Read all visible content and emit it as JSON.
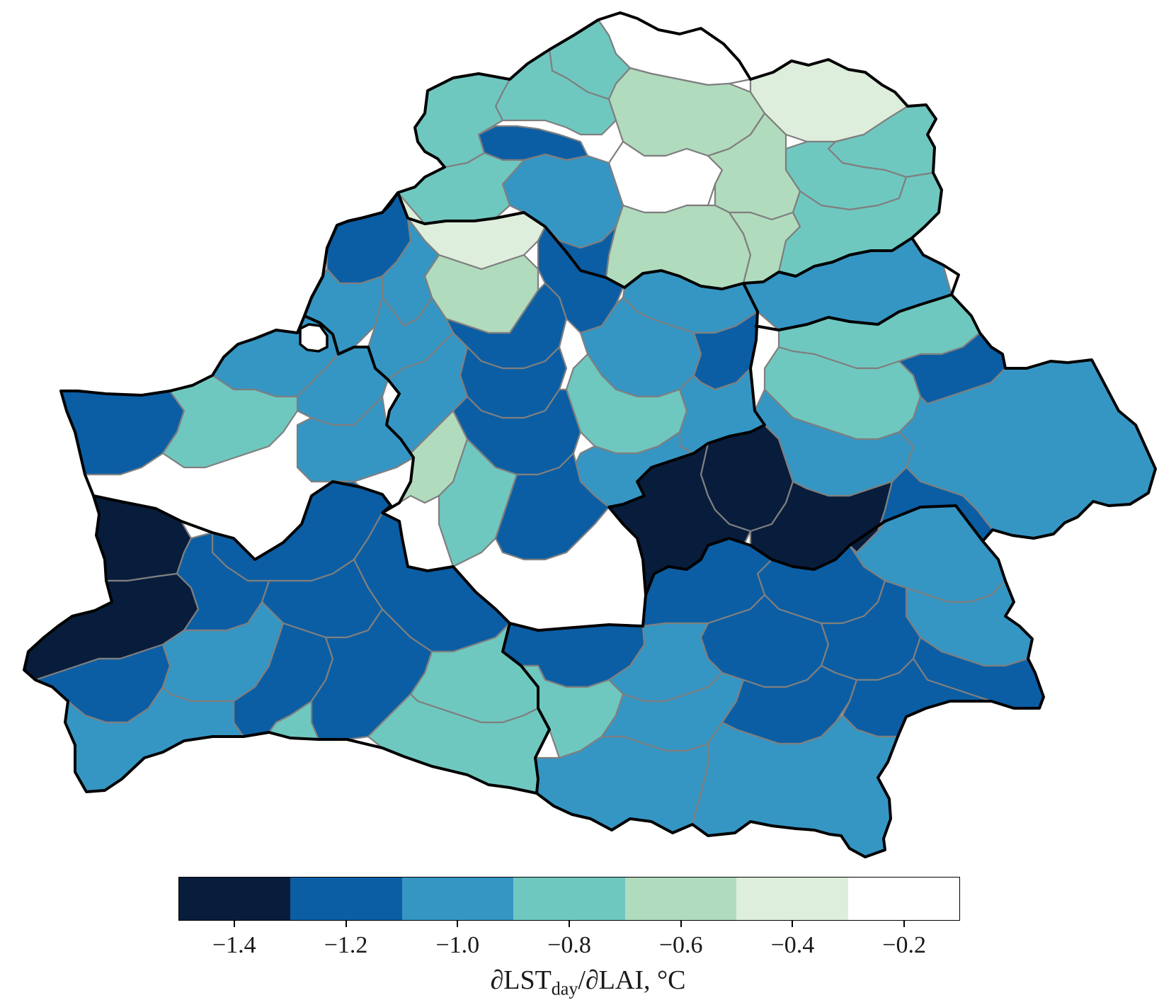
{
  "colorbar": {
    "bins": [
      {
        "from": -1.5,
        "to": -1.3,
        "color": "#081d3c"
      },
      {
        "from": -1.3,
        "to": -1.1,
        "color": "#0b5ea4"
      },
      {
        "from": -1.1,
        "to": -0.9,
        "color": "#3596c4"
      },
      {
        "from": -0.9,
        "to": -0.7,
        "color": "#6fc8c0"
      },
      {
        "from": -0.7,
        "to": -0.5,
        "color": "#b1dbbd"
      },
      {
        "from": -0.5,
        "to": -0.3,
        "color": "#deeedc"
      },
      {
        "from": -0.3,
        "to": -0.1,
        "color": "#ffffff"
      }
    ],
    "ticks": [
      {
        "value": -1.4,
        "label": "−1.4"
      },
      {
        "value": -1.2,
        "label": "−1.2"
      },
      {
        "value": -1.0,
        "label": "−1.0"
      },
      {
        "value": -0.8,
        "label": "−0.8"
      },
      {
        "value": -0.6,
        "label": "−0.6"
      },
      {
        "value": -0.4,
        "label": "−0.4"
      },
      {
        "value": -0.2,
        "label": "−0.2"
      }
    ],
    "title_main": "∂LST",
    "title_sub": "day",
    "title_rest": "/∂LAI, °C"
  },
  "map": {
    "district_values": [
      -0.2,
      -0.8,
      -0.6,
      -0.4,
      -0.8,
      -1.2,
      -0.8,
      -0.8,
      -0.2,
      -0.6,
      -1.0,
      -0.8,
      -0.8,
      -0.6,
      -0.4,
      -0.6,
      -0.6,
      -0.8,
      -1.2,
      -1.0,
      -1.0,
      -1.2,
      -1.0,
      -1.0,
      -1.2,
      -1.0,
      -1.2,
      -0.8,
      -1.0,
      -1.2,
      -0.8,
      -1.0,
      -1.0,
      -1.0,
      -0.8,
      -1.2,
      -1.0,
      -1.4,
      -1.0,
      -1.0,
      -1.2,
      -0.8,
      -1.2,
      -1.4,
      -1.0,
      -1.0,
      -0.6,
      -0.8,
      -1.2,
      -1.4,
      -1.4,
      -1.2,
      -1.0,
      -1.2,
      -1.4,
      -1.2,
      -1.0,
      -1.2,
      -1.2,
      -1.2,
      -1.2,
      -1.2,
      -1.2,
      -1.0,
      -1.2,
      -1.2,
      -1.2,
      -1.0,
      -1.2,
      -1.2,
      -0.8,
      -0.8,
      -1.0,
      -1.2,
      -1.2,
      -1.0,
      -0.8,
      -0.8,
      -1.0,
      -1.0
    ]
  }
}
